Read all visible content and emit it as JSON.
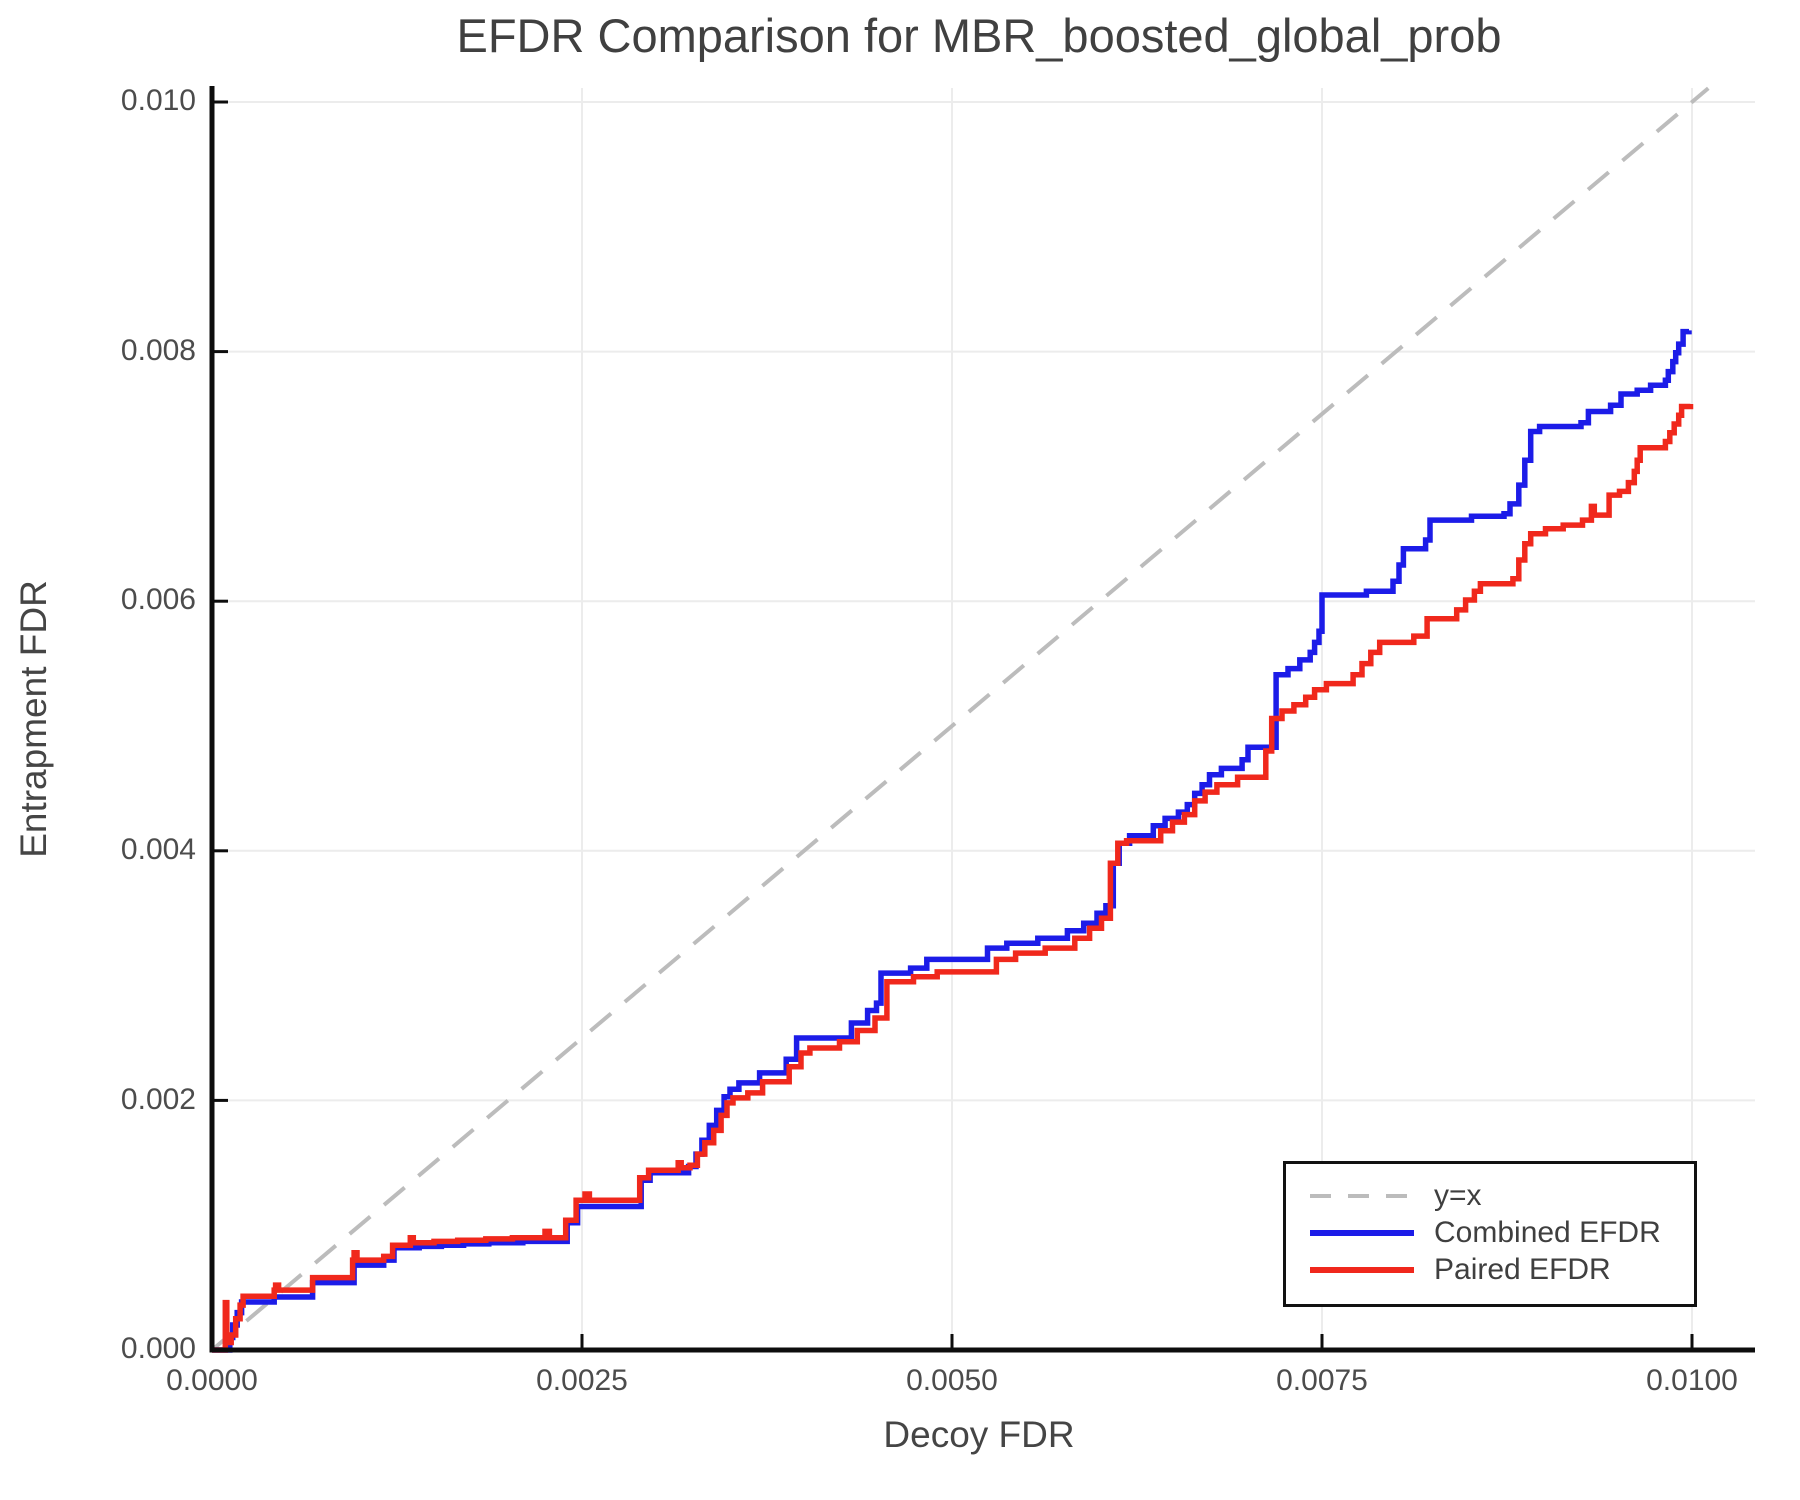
{
  "title": "EFDR Comparison for MBR_boosted_global_prob",
  "axes": {
    "x": {
      "label": "Decoy FDR",
      "ticks": [
        "0.0000",
        "0.0025",
        "0.0050",
        "0.0075",
        "0.0100"
      ],
      "tick_values": [
        0.0,
        0.0025,
        0.005,
        0.0075,
        0.01
      ]
    },
    "y": {
      "label": "Entrapment FDR",
      "ticks": [
        "0.000",
        "0.002",
        "0.004",
        "0.006",
        "0.008",
        "0.010"
      ],
      "tick_values": [
        0.0,
        0.002,
        0.004,
        0.006,
        0.008,
        0.01
      ]
    }
  },
  "legend": {
    "items": [
      {
        "label": "y=x"
      },
      {
        "label": "Combined EFDR"
      },
      {
        "label": "Paired EFDR"
      }
    ]
  },
  "colors": {
    "identity": "#bcbcbc",
    "combined": "#1c1ce8",
    "paired": "#f0281c",
    "grid": "#ececec",
    "spine": "#0d0d0d",
    "text": "#404040"
  },
  "chart_data": {
    "type": "line",
    "title": "EFDR Comparison for MBR_boosted_global_prob",
    "xlabel": "Decoy FDR",
    "ylabel": "Entrapment FDR",
    "xlim": [
      0.0,
      0.01
    ],
    "ylim": [
      0.0,
      0.01
    ],
    "grid": true,
    "legend_position": "lower right",
    "series": [
      {
        "name": "y=x",
        "style": "dashed",
        "color": "#bcbcbc",
        "points": [
          [
            0.0,
            0.0
          ],
          [
            0.01011,
            0.01011
          ]
        ]
      },
      {
        "name": "Combined EFDR",
        "style": "step",
        "color": "#1c1ce8",
        "points": [
          [
            0.0,
            0.0
          ],
          [
            0.0001,
            0.0
          ],
          [
            0.00012,
            0.0001
          ],
          [
            0.00014,
            0.0002
          ],
          [
            0.00017,
            0.0003
          ],
          [
            0.0002,
            0.000385
          ],
          [
            0.00042,
            0.000425
          ],
          [
            0.00068,
            0.00054
          ],
          [
            0.00096,
            0.00068
          ],
          [
            0.00116,
            0.00072
          ],
          [
            0.00123,
            0.00082
          ],
          [
            0.0014,
            0.00083
          ],
          [
            0.00155,
            0.00084
          ],
          [
            0.0017,
            0.00085
          ],
          [
            0.00187,
            0.00086
          ],
          [
            0.0021,
            0.00087
          ],
          [
            0.0024,
            0.00102
          ],
          [
            0.00247,
            0.00115
          ],
          [
            0.0029,
            0.00136
          ],
          [
            0.00296,
            0.00142
          ],
          [
            0.00322,
            0.00147
          ],
          [
            0.00327,
            0.00157
          ],
          [
            0.00331,
            0.00168
          ],
          [
            0.00336,
            0.0018
          ],
          [
            0.00341,
            0.00192
          ],
          [
            0.00346,
            0.00203
          ],
          [
            0.0035,
            0.00209
          ],
          [
            0.00356,
            0.00214
          ],
          [
            0.0037,
            0.00222
          ],
          [
            0.00388,
            0.00233
          ],
          [
            0.00395,
            0.0025
          ],
          [
            0.00432,
            0.00262
          ],
          [
            0.00443,
            0.00272
          ],
          [
            0.00449,
            0.00278
          ],
          [
            0.00452,
            0.00302
          ],
          [
            0.00472,
            0.00306
          ],
          [
            0.00483,
            0.00313
          ],
          [
            0.00524,
            0.00322
          ],
          [
            0.00537,
            0.00326
          ],
          [
            0.00558,
            0.0033
          ],
          [
            0.00578,
            0.00336
          ],
          [
            0.00589,
            0.00342
          ],
          [
            0.00598,
            0.0035
          ],
          [
            0.00604,
            0.00356
          ],
          [
            0.00609,
            0.0039
          ],
          [
            0.00613,
            0.00406
          ],
          [
            0.0062,
            0.00412
          ],
          [
            0.00636,
            0.0042
          ],
          [
            0.00644,
            0.00426
          ],
          [
            0.00653,
            0.00431
          ],
          [
            0.00659,
            0.00437
          ],
          [
            0.00664,
            0.00446
          ],
          [
            0.00669,
            0.00453
          ],
          [
            0.00674,
            0.00461
          ],
          [
            0.00682,
            0.00466
          ],
          [
            0.00696,
            0.00473
          ],
          [
            0.007,
            0.00483
          ],
          [
            0.00719,
            0.00541
          ],
          [
            0.00727,
            0.00546
          ],
          [
            0.00735,
            0.00553
          ],
          [
            0.00742,
            0.00559
          ],
          [
            0.00745,
            0.00567
          ],
          [
            0.00748,
            0.00576
          ],
          [
            0.0075,
            0.00605
          ],
          [
            0.0078,
            0.00608
          ],
          [
            0.00798,
            0.00616
          ],
          [
            0.00802,
            0.00629
          ],
          [
            0.00805,
            0.00642
          ],
          [
            0.0082,
            0.00649
          ],
          [
            0.00823,
            0.00665
          ],
          [
            0.00851,
            0.00668
          ],
          [
            0.00873,
            0.0067
          ],
          [
            0.00877,
            0.00678
          ],
          [
            0.00883,
            0.00693
          ],
          [
            0.00887,
            0.00713
          ],
          [
            0.00891,
            0.00736
          ],
          [
            0.00897,
            0.0074
          ],
          [
            0.00925,
            0.00743
          ],
          [
            0.0093,
            0.00752
          ],
          [
            0.00945,
            0.00757
          ],
          [
            0.00952,
            0.00766
          ],
          [
            0.00963,
            0.00769
          ],
          [
            0.00972,
            0.00773
          ],
          [
            0.00982,
            0.00777
          ],
          [
            0.00984,
            0.00784
          ],
          [
            0.00987,
            0.00792
          ],
          [
            0.00989,
            0.00799
          ],
          [
            0.00991,
            0.00806
          ],
          [
            0.00994,
            0.00816
          ],
          [
            0.00998,
            0.00817
          ]
        ]
      },
      {
        "name": "Paired EFDR",
        "style": "step",
        "color": "#f0281c",
        "points": [
          [
            0.0,
            0.0
          ],
          [
            8e-05,
            0.0
          ],
          [
            9e-05,
            0.00038
          ],
          [
            0.0001,
            6e-05
          ],
          [
            0.00013,
            0.00012
          ],
          [
            0.00016,
            0.00025
          ],
          [
            0.00019,
            0.00036
          ],
          [
            0.00021,
            0.00043
          ],
          [
            0.00042,
            0.00048
          ],
          [
            0.00043,
            0.00052
          ],
          [
            0.00045,
            0.00048
          ],
          [
            0.00068,
            0.00058
          ],
          [
            0.00095,
            0.00072
          ],
          [
            0.00096,
            0.00078
          ],
          [
            0.00098,
            0.00072
          ],
          [
            0.00116,
            0.00075
          ],
          [
            0.00122,
            0.00084
          ],
          [
            0.00134,
            0.0009
          ],
          [
            0.00136,
            0.00086
          ],
          [
            0.0015,
            0.00087
          ],
          [
            0.00166,
            0.00088
          ],
          [
            0.00185,
            0.00089
          ],
          [
            0.00203,
            0.0009
          ],
          [
            0.00225,
            0.00095
          ],
          [
            0.00228,
            0.0009
          ],
          [
            0.00239,
            0.00104
          ],
          [
            0.00246,
            0.0012
          ],
          [
            0.00252,
            0.00125
          ],
          [
            0.00255,
            0.0012
          ],
          [
            0.00289,
            0.00138
          ],
          [
            0.00295,
            0.00144
          ],
          [
            0.00315,
            0.0015
          ],
          [
            0.00317,
            0.00146
          ],
          [
            0.00323,
            0.00148
          ],
          [
            0.00328,
            0.00157
          ],
          [
            0.00333,
            0.00166
          ],
          [
            0.00339,
            0.00176
          ],
          [
            0.00344,
            0.00188
          ],
          [
            0.00348,
            0.00198
          ],
          [
            0.00352,
            0.00202
          ],
          [
            0.00362,
            0.00206
          ],
          [
            0.00372,
            0.00215
          ],
          [
            0.0039,
            0.00227
          ],
          [
            0.00398,
            0.00238
          ],
          [
            0.00404,
            0.00242
          ],
          [
            0.00424,
            0.00247
          ],
          [
            0.00436,
            0.00256
          ],
          [
            0.00448,
            0.00266
          ],
          [
            0.00456,
            0.00295
          ],
          [
            0.00474,
            0.00299
          ],
          [
            0.0049,
            0.00303
          ],
          [
            0.0053,
            0.00313
          ],
          [
            0.00543,
            0.00318
          ],
          [
            0.00563,
            0.00322
          ],
          [
            0.00583,
            0.0033
          ],
          [
            0.00593,
            0.00338
          ],
          [
            0.00601,
            0.00346
          ],
          [
            0.00607,
            0.0039
          ],
          [
            0.00612,
            0.00406
          ],
          [
            0.00618,
            0.00408
          ],
          [
            0.00641,
            0.00416
          ],
          [
            0.00649,
            0.00423
          ],
          [
            0.00657,
            0.00429
          ],
          [
            0.00664,
            0.0044
          ],
          [
            0.00671,
            0.00447
          ],
          [
            0.00679,
            0.00453
          ],
          [
            0.00693,
            0.00459
          ],
          [
            0.00712,
            0.0048
          ],
          [
            0.00716,
            0.00506
          ],
          [
            0.00723,
            0.00512
          ],
          [
            0.00731,
            0.00517
          ],
          [
            0.00739,
            0.00523
          ],
          [
            0.00745,
            0.00529
          ],
          [
            0.00753,
            0.00534
          ],
          [
            0.00771,
            0.00541
          ],
          [
            0.00777,
            0.0055
          ],
          [
            0.00783,
            0.00559
          ],
          [
            0.00789,
            0.00567
          ],
          [
            0.00812,
            0.00572
          ],
          [
            0.00821,
            0.00586
          ],
          [
            0.00841,
            0.00593
          ],
          [
            0.00847,
            0.00601
          ],
          [
            0.00853,
            0.00608
          ],
          [
            0.00857,
            0.00614
          ],
          [
            0.00879,
            0.00618
          ],
          [
            0.00883,
            0.00633
          ],
          [
            0.00887,
            0.00646
          ],
          [
            0.00891,
            0.00654
          ],
          [
            0.00901,
            0.00658
          ],
          [
            0.00913,
            0.00661
          ],
          [
            0.00926,
            0.00665
          ],
          [
            0.00932,
            0.00676
          ],
          [
            0.00934,
            0.00669
          ],
          [
            0.00944,
            0.00685
          ],
          [
            0.00951,
            0.00688
          ],
          [
            0.00957,
            0.00695
          ],
          [
            0.00961,
            0.00704
          ],
          [
            0.00963,
            0.00713
          ],
          [
            0.00965,
            0.00723
          ],
          [
            0.00982,
            0.00728
          ],
          [
            0.00985,
            0.00735
          ],
          [
            0.00988,
            0.00742
          ],
          [
            0.00991,
            0.00749
          ],
          [
            0.00993,
            0.00756
          ],
          [
            0.00999,
            0.00758
          ]
        ]
      }
    ]
  }
}
